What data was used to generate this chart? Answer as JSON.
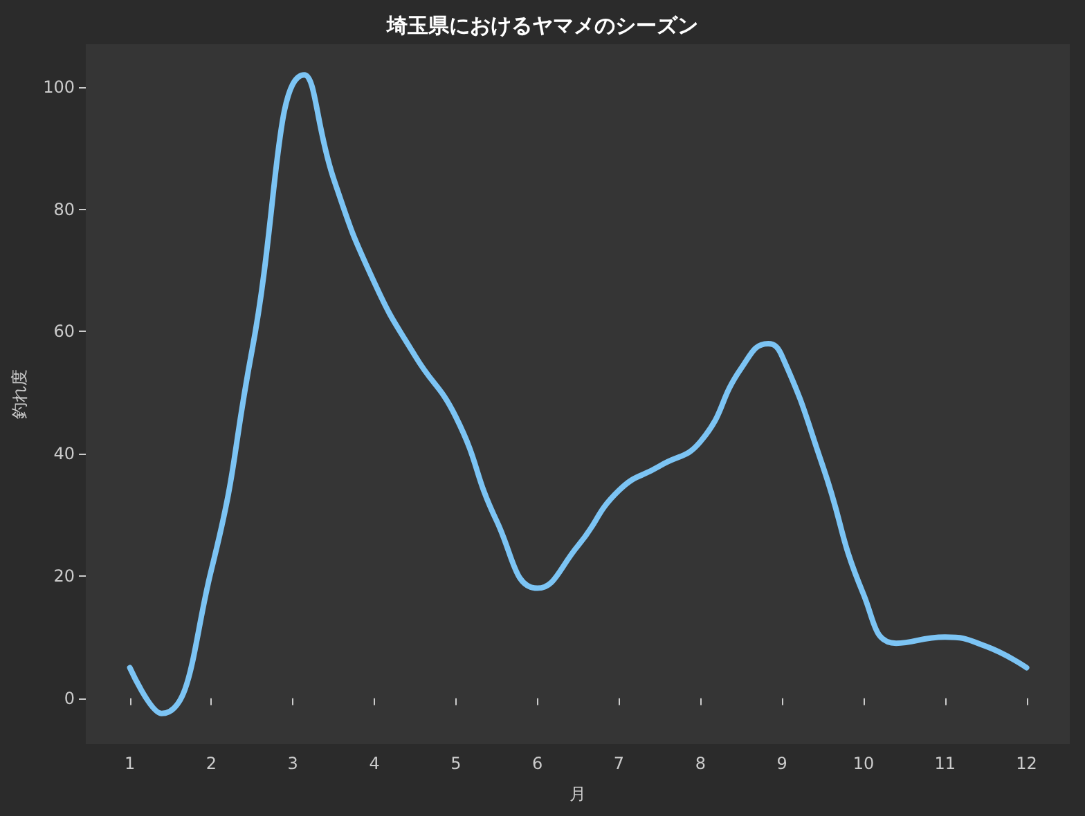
{
  "chart_data": {
    "type": "line",
    "title": "埼玉県におけるヤマメのシーズン",
    "xlabel": "月",
    "ylabel": "釣れ度",
    "x": [
      1,
      1.39,
      2,
      2.5,
      3.14,
      3.5,
      4,
      4.5,
      5,
      5.5,
      6,
      6.5,
      7,
      7.5,
      8,
      8.5,
      8.83,
      9,
      9.5,
      10,
      10.4,
      11,
      11.5,
      12
    ],
    "series": [
      {
        "color": "#7cc4f4",
        "values": [
          5,
          -2.5,
          21,
          57,
          102,
          85,
          68,
          56,
          46,
          29,
          18,
          25,
          34,
          38,
          42,
          54,
          58,
          56,
          38,
          17,
          9,
          10,
          8.5,
          5
        ]
      }
    ],
    "xlim": [
      0.46,
      12.53
    ],
    "ylim": [
      -7.5,
      107
    ],
    "xticks": [
      1,
      2,
      3,
      4,
      5,
      6,
      7,
      8,
      9,
      10,
      11,
      12
    ],
    "yticks": [
      0,
      20,
      40,
      60,
      80,
      100
    ],
    "marker": "none",
    "line_style": "solid"
  }
}
